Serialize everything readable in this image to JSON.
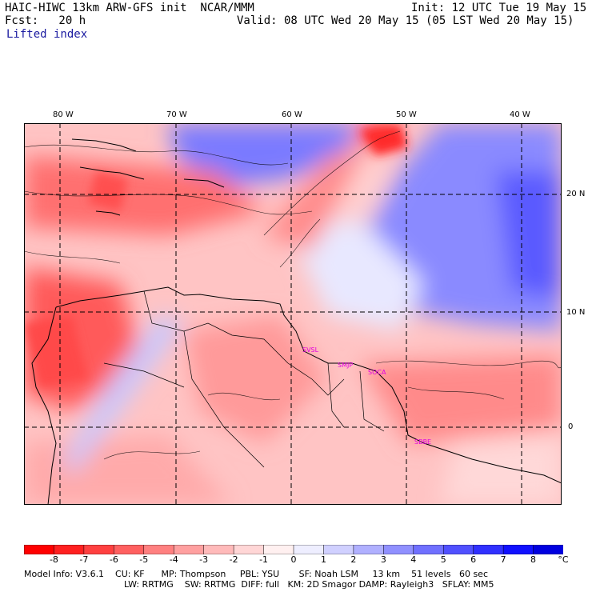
{
  "header": {
    "title_left": "HAIC-HIWC 13km ARW-GFS init  NCAR/MMM",
    "init": "Init: 12 UTC Tue 19 May 15",
    "fcst": "Fcst:   20 h",
    "valid": "Valid: 08 UTC Wed 20 May 15 (05 LST Wed 20 May 15)",
    "field": "Lifted index"
  },
  "map": {
    "lon_labels": [
      "80 W",
      "70 W",
      "60 W",
      "50 W",
      "40 W"
    ],
    "lat_labels": [
      "20 N",
      "10 N",
      "0"
    ],
    "stations": [
      "SVSL",
      "SMJP",
      "SOCA",
      "SBBE"
    ]
  },
  "colorbar": {
    "ticks": [
      "-8",
      "-7",
      "-6",
      "-5",
      "-4",
      "-3",
      "-2",
      "-1",
      "0",
      "1",
      "2",
      "3",
      "4",
      "5",
      "6",
      "7",
      "8"
    ],
    "unit": "°C",
    "colors": [
      "#ff0000",
      "#ff2020",
      "#ff4040",
      "#ff6060",
      "#ff8080",
      "#ffa0a0",
      "#ffbaba",
      "#ffd6d6",
      "#fff0f0",
      "#eeeeff",
      "#d0d0ff",
      "#b0b0ff",
      "#9090ff",
      "#7070ff",
      "#5050ff",
      "#3030ff",
      "#1010ff",
      "#0000e0"
    ]
  },
  "model_info": {
    "line1": "Model Info: V3.6.1    CU: KF      MP: Thompson     PBL: YSU       SF: Noah LSM     13 km    51 levels   60 sec",
    "line2": "LW: RRTMG    SW: RRTMG  DIFF: full   KM: 2D Smagor DAMP: Rayleigh3   SFLAY: MM5"
  }
}
